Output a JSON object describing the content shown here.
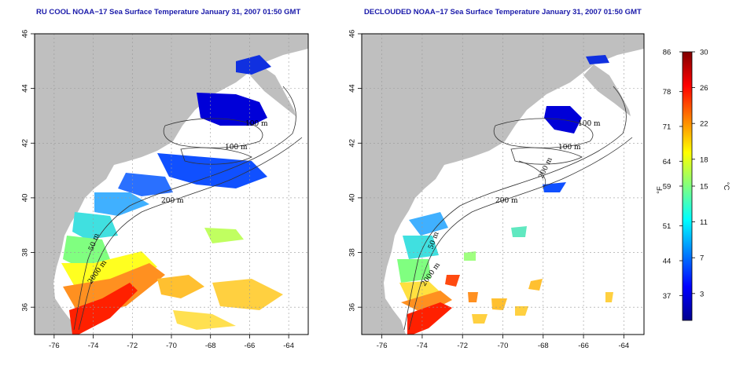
{
  "chart_data": [
    {
      "type": "heatmap",
      "title": "RU COOL NOAA−17 Sea Surface Temperature January 31, 2007 01:50 GMT",
      "xlim": [
        -77,
        -63
      ],
      "ylim": [
        35,
        46
      ],
      "xticks": [
        "-76",
        "-74",
        "-72",
        "-70",
        "-68",
        "-66",
        "-64"
      ],
      "yticks": [
        "36",
        "38",
        "40",
        "42",
        "44",
        "46"
      ],
      "contour_labels": [
        "100 m",
        "100 m",
        "200 m",
        "50 m",
        "2000 m"
      ],
      "grid": true
    },
    {
      "type": "heatmap",
      "title": "DECLOUDED NOAA−17 Sea Surface Temperature January 31, 2007 01:50 GMT",
      "xlim": [
        -77,
        -63
      ],
      "ylim": [
        35,
        46
      ],
      "xticks": [
        "-76",
        "-74",
        "-72",
        "-70",
        "-68",
        "-66",
        "-64"
      ],
      "yticks": [
        "36",
        "38",
        "40",
        "42",
        "44",
        "46"
      ],
      "contour_labels": [
        "100 m",
        "100 m",
        "200 m",
        "50 m",
        "200 m",
        "2000 m"
      ],
      "grid": true
    }
  ],
  "colorbar": {
    "f_label": "°F",
    "c_label": "°C",
    "f_ticks": [
      "86",
      "78",
      "71",
      "64",
      "59",
      "51",
      "44",
      "37"
    ],
    "c_ticks": [
      "30",
      "26",
      "22",
      "18",
      "15",
      "11",
      "7",
      "3"
    ],
    "c_range": [
      0,
      30
    ],
    "colors": [
      "#00008f",
      "#0000ff",
      "#0080ff",
      "#00ffff",
      "#80ff80",
      "#ffff00",
      "#ff8000",
      "#ff0000",
      "#800000"
    ]
  }
}
